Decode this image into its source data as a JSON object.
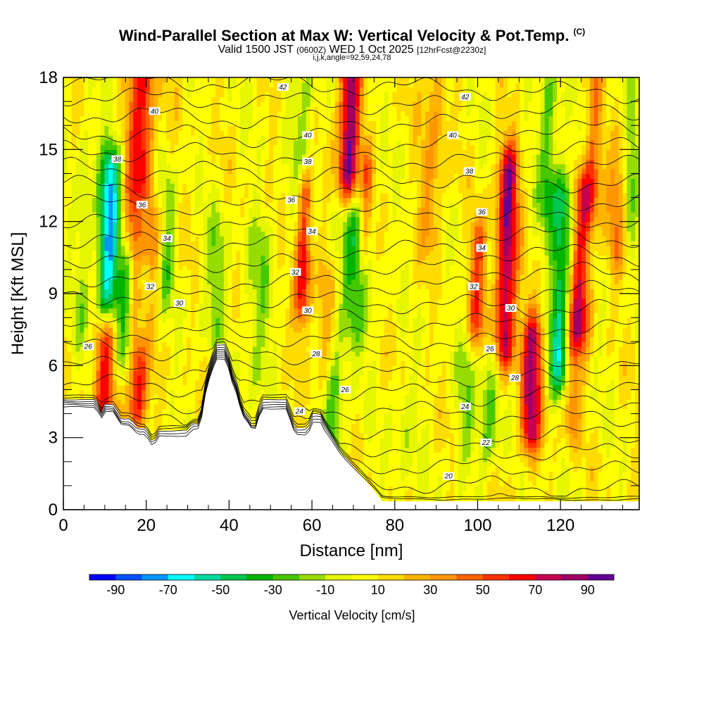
{
  "chart_data": {
    "type": "heatmap",
    "title": "Wind-Parallel Section at Max W: Vertical Velocity & Pot.Temp.",
    "title_mark": "(C)",
    "subtitle_main": "Valid 1500 JST",
    "subtitle_z": "(0600Z)",
    "subtitle_date": "WED 1 Oct 2025",
    "subtitle_fcst": "[12hrFcst@2230z]",
    "subtitle2": "i,j,k,angle=92,59,24,78",
    "xlabel": "Distance [nm]",
    "ylabel": "Height [Kft MSL]",
    "xlim": [
      0,
      139
    ],
    "ylim": [
      0,
      18
    ],
    "x_ticks": [
      0,
      20,
      40,
      60,
      80,
      100,
      120
    ],
    "y_ticks": [
      0,
      3,
      6,
      9,
      12,
      15,
      18
    ],
    "colorbar_label": "Vertical Velocity [cm/s]",
    "colorbar_ticks": [
      -90,
      -70,
      -50,
      -30,
      -10,
      10,
      30,
      50,
      70,
      90
    ],
    "colorbar_colors": [
      "#0000ff",
      "#0050ff",
      "#0096ff",
      "#00ffff",
      "#00dca0",
      "#00c850",
      "#00b400",
      "#46c800",
      "#96dc00",
      "#e6f500",
      "#ffff00",
      "#ffdc00",
      "#ffb400",
      "#ff9600",
      "#ff6400",
      "#ff3200",
      "#ff0000",
      "#c80050",
      "#a00064",
      "#640096"
    ],
    "terrain_profile": [
      [
        0,
        4.6
      ],
      [
        8,
        4.6
      ],
      [
        9,
        4.0
      ],
      [
        10,
        4.4
      ],
      [
        12,
        4.4
      ],
      [
        14,
        3.8
      ],
      [
        16,
        3.8
      ],
      [
        18,
        3.4
      ],
      [
        20,
        3.4
      ],
      [
        21,
        2.9
      ],
      [
        22,
        2.9
      ],
      [
        23,
        3.3
      ],
      [
        30,
        3.3
      ],
      [
        31,
        3.6
      ],
      [
        33,
        3.6
      ],
      [
        34,
        5.0
      ],
      [
        35,
        5.8
      ],
      [
        36,
        6.4
      ],
      [
        37,
        6.9
      ],
      [
        39,
        6.9
      ],
      [
        40,
        6.4
      ],
      [
        41,
        5.6
      ],
      [
        42,
        5.2
      ],
      [
        43,
        4.3
      ],
      [
        44,
        4.0
      ],
      [
        45,
        3.8
      ],
      [
        46,
        3.4
      ],
      [
        47,
        4.1
      ],
      [
        48,
        4.6
      ],
      [
        54,
        4.6
      ],
      [
        55,
        3.9
      ],
      [
        56,
        3.4
      ],
      [
        59,
        3.4
      ],
      [
        60,
        4.0
      ],
      [
        62,
        4.0
      ],
      [
        63,
        3.6
      ],
      [
        65,
        3.0
      ],
      [
        67,
        2.4
      ],
      [
        69,
        2.0
      ],
      [
        71,
        1.6
      ],
      [
        73,
        1.2
      ],
      [
        75,
        0.8
      ],
      [
        77,
        0.35
      ],
      [
        139,
        0.35
      ]
    ],
    "updraft_cores": [
      {
        "x": 19.5,
        "ymin": 11,
        "ymax": 18,
        "w": 75,
        "dx": 4
      },
      {
        "x": 18,
        "ymin": 4.5,
        "ymax": 8.5,
        "w": 65,
        "dx": 2.5
      },
      {
        "x": 10,
        "ymin": 4.5,
        "ymax": 7,
        "w": 55,
        "dx": 2.5
      },
      {
        "x": 58,
        "ymin": 9,
        "ymax": 13,
        "w": 65,
        "dx": 2
      },
      {
        "x": 69,
        "ymin": 14,
        "ymax": 18,
        "w": 85,
        "dx": 2.5
      },
      {
        "x": 73,
        "ymin": 11,
        "ymax": 14,
        "w": 35,
        "dx": 1.5
      },
      {
        "x": 107,
        "ymin": 7,
        "ymax": 14,
        "w": 80,
        "dx": 2.5
      },
      {
        "x": 113,
        "ymin": 3.5,
        "ymax": 7,
        "w": 75,
        "dx": 2.5
      },
      {
        "x": 100,
        "ymin": 8,
        "ymax": 11,
        "w": 45,
        "dx": 2
      },
      {
        "x": 125,
        "ymin": 8,
        "ymax": 13,
        "w": 60,
        "dx": 2.5
      },
      {
        "x": 123,
        "ymin": 4,
        "ymax": 7,
        "w": 35,
        "dx": 2
      },
      {
        "x": 128,
        "ymin": 13,
        "ymax": 18,
        "w": 30,
        "dx": 2
      },
      {
        "x": 63,
        "ymin": 6,
        "ymax": 9,
        "w": 25,
        "dx": 2
      },
      {
        "x": 89,
        "ymin": 12,
        "ymax": 18,
        "w": 25,
        "dx": 3
      },
      {
        "x": 134,
        "ymin": 11,
        "ymax": 15,
        "w": 30,
        "dx": 2.5
      }
    ],
    "downdraft_cores": [
      {
        "x": 11,
        "ymin": 9,
        "ymax": 14,
        "w": -75,
        "dx": 2.5
      },
      {
        "x": 19,
        "ymin": 8,
        "ymax": 12,
        "w": -55,
        "dx": 2
      },
      {
        "x": 15,
        "ymin": 7,
        "ymax": 10,
        "w": -40,
        "dx": 2
      },
      {
        "x": 22,
        "ymin": 14,
        "ymax": 18,
        "w": -35,
        "dx": 2.5
      },
      {
        "x": 25,
        "ymin": 10,
        "ymax": 13,
        "w": -30,
        "dx": 2
      },
      {
        "x": 70,
        "ymin": 8,
        "ymax": 12,
        "w": -35,
        "dx": 4
      },
      {
        "x": 103,
        "ymin": 3,
        "ymax": 6,
        "w": -30,
        "dx": 2.5
      },
      {
        "x": 97,
        "ymin": 3,
        "ymax": 6,
        "w": -20,
        "dx": 2
      },
      {
        "x": 120,
        "ymin": 6,
        "ymax": 13,
        "w": -55,
        "dx": 2.5
      },
      {
        "x": 117,
        "ymin": 13,
        "ymax": 17,
        "w": -35,
        "dx": 2
      },
      {
        "x": 58,
        "ymin": 12,
        "ymax": 18,
        "w": -20,
        "dx": 3
      },
      {
        "x": 47,
        "ymin": 6,
        "ymax": 11,
        "w": -20,
        "dx": 3
      },
      {
        "x": 37,
        "ymin": 8,
        "ymax": 11,
        "w": -20,
        "dx": 3
      },
      {
        "x": 5,
        "ymin": 8,
        "ymax": 15,
        "w": -15,
        "dx": 2
      },
      {
        "x": 65,
        "ymin": 3,
        "ymax": 5,
        "w": -30,
        "dx": 3
      },
      {
        "x": 82,
        "ymin": 2,
        "ymax": 4,
        "w": -12,
        "dx": 3
      },
      {
        "x": 137,
        "ymin": 12,
        "ymax": 18,
        "w": -25,
        "dx": 2
      }
    ],
    "contour_values": [
      20,
      22,
      24,
      26,
      28,
      30,
      32,
      34,
      36,
      38,
      40,
      42
    ],
    "contour_labels": [
      {
        "text": "20",
        "x": 93,
        "y": 1.4
      },
      {
        "text": "22",
        "x": 102,
        "y": 2.8
      },
      {
        "text": "24",
        "x": 57,
        "y": 4.1
      },
      {
        "text": "24",
        "x": 97,
        "y": 4.3
      },
      {
        "text": "26",
        "x": 68,
        "y": 5.0
      },
      {
        "text": "26",
        "x": 103,
        "y": 6.7
      },
      {
        "text": "26",
        "x": 6,
        "y": 6.8
      },
      {
        "text": "28",
        "x": 61,
        "y": 6.5
      },
      {
        "text": "28",
        "x": 109,
        "y": 5.5
      },
      {
        "text": "30",
        "x": 28,
        "y": 8.6
      },
      {
        "text": "30",
        "x": 59,
        "y": 8.3
      },
      {
        "text": "30",
        "x": 108,
        "y": 8.4
      },
      {
        "text": "32",
        "x": 21,
        "y": 9.3
      },
      {
        "text": "32",
        "x": 56,
        "y": 9.9
      },
      {
        "text": "32",
        "x": 99,
        "y": 9.3
      },
      {
        "text": "34",
        "x": 25,
        "y": 11.3
      },
      {
        "text": "34",
        "x": 60,
        "y": 11.6
      },
      {
        "text": "34",
        "x": 101,
        "y": 10.9
      },
      {
        "text": "36",
        "x": 19,
        "y": 12.7
      },
      {
        "text": "36",
        "x": 55,
        "y": 12.9
      },
      {
        "text": "36",
        "x": 101,
        "y": 12.4
      },
      {
        "text": "38",
        "x": 13,
        "y": 14.6
      },
      {
        "text": "38",
        "x": 59,
        "y": 14.5
      },
      {
        "text": "38",
        "x": 98,
        "y": 14.1
      },
      {
        "text": "40",
        "x": 22,
        "y": 16.6
      },
      {
        "text": "40",
        "x": 59,
        "y": 15.6
      },
      {
        "text": "40",
        "x": 94,
        "y": 15.6
      },
      {
        "text": "42",
        "x": 53,
        "y": 17.6
      },
      {
        "text": "42",
        "x": 97,
        "y": 17.2
      }
    ]
  }
}
